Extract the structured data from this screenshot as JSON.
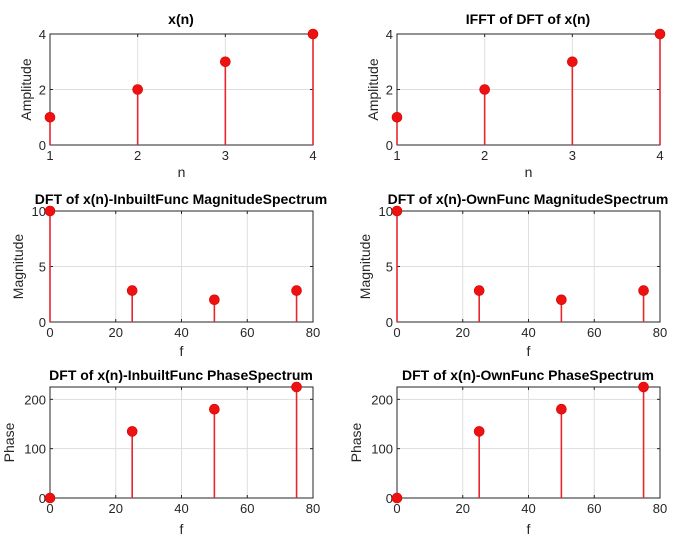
{
  "chart_data": [
    {
      "type": "stem",
      "title": "x(n)",
      "xlabel": "n",
      "ylabel": "Amplitude",
      "xlim": [
        1,
        4
      ],
      "ylim": [
        0,
        4
      ],
      "xticks": [
        1,
        2,
        3,
        4
      ],
      "yticks": [
        0,
        2,
        4
      ],
      "grid": true,
      "color": "#ee1111",
      "x": [
        1,
        2,
        3,
        4
      ],
      "y": [
        1,
        2,
        3,
        4
      ]
    },
    {
      "type": "stem",
      "title": "IFFT of DFT of x(n)",
      "xlabel": "n",
      "ylabel": "Amplitude",
      "xlim": [
        1,
        4
      ],
      "ylim": [
        0,
        4
      ],
      "xticks": [
        1,
        2,
        3,
        4
      ],
      "yticks": [
        0,
        2,
        4
      ],
      "grid": true,
      "color": "#ee1111",
      "x": [
        1,
        2,
        3,
        4
      ],
      "y": [
        1,
        2,
        3,
        4
      ]
    },
    {
      "type": "stem",
      "title": "DFT of x(n)-InbuiltFunc MagnitudeSpectrum",
      "xlabel": "f",
      "ylabel": "Magnitude",
      "xlim": [
        0,
        80
      ],
      "ylim": [
        0,
        10
      ],
      "xticks": [
        0,
        20,
        40,
        60,
        80
      ],
      "yticks": [
        0,
        5,
        10
      ],
      "grid": true,
      "color": "#ee1111",
      "x": [
        0,
        25,
        50,
        75
      ],
      "y": [
        10,
        2.83,
        2,
        2.83
      ]
    },
    {
      "type": "stem",
      "title": "DFT of x(n)-OwnFunc MagnitudeSpectrum",
      "xlabel": "f",
      "ylabel": "Magnitude",
      "xlim": [
        0,
        80
      ],
      "ylim": [
        0,
        10
      ],
      "xticks": [
        0,
        20,
        40,
        60,
        80
      ],
      "yticks": [
        0,
        5,
        10
      ],
      "grid": true,
      "color": "#ee1111",
      "x": [
        0,
        25,
        50,
        75
      ],
      "y": [
        10,
        2.83,
        2,
        2.83
      ]
    },
    {
      "type": "stem",
      "title": "DFT of x(n)-InbuiltFunc PhaseSpectrum",
      "xlabel": "f",
      "ylabel": "Phase",
      "xlim": [
        0,
        80
      ],
      "ylim": [
        0,
        225
      ],
      "xticks": [
        0,
        20,
        40,
        60,
        80
      ],
      "yticks": [
        0,
        100,
        200
      ],
      "grid": true,
      "color": "#ee1111",
      "x": [
        0,
        25,
        50,
        75
      ],
      "y": [
        0,
        135,
        180,
        225
      ]
    },
    {
      "type": "stem",
      "title": "DFT of x(n)-OwnFunc PhaseSpectrum",
      "xlabel": "f",
      "ylabel": "Phase",
      "xlim": [
        0,
        80
      ],
      "ylim": [
        0,
        225
      ],
      "xticks": [
        0,
        20,
        40,
        60,
        80
      ],
      "yticks": [
        0,
        100,
        200
      ],
      "grid": true,
      "color": "#ee1111",
      "x": [
        0,
        25,
        50,
        75
      ],
      "y": [
        0,
        135,
        180,
        225
      ]
    }
  ]
}
